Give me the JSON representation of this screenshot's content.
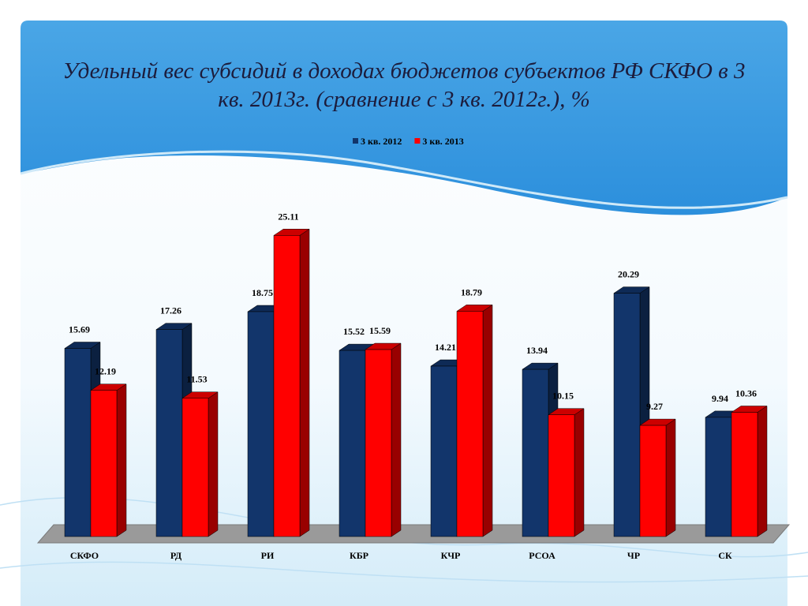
{
  "chart_data": {
    "type": "bar3d",
    "title": "Удельный вес субсидий в доходах бюджетов субъектов РФ СКФО в 3 кв. 2013г. (сравнение с 3 кв. 2012г.), %",
    "categories": [
      "СКФО",
      "РД",
      "РИ",
      "КБР",
      "КЧР",
      "РСОА",
      "ЧР",
      "СК"
    ],
    "series": [
      {
        "name": "3 кв. 2012",
        "color": "#12356b",
        "values": [
          15.69,
          17.26,
          18.75,
          15.52,
          14.21,
          13.94,
          20.29,
          9.94
        ]
      },
      {
        "name": "3 кв. 2013",
        "color": "#ff0000",
        "values": [
          12.19,
          11.53,
          25.11,
          15.59,
          18.79,
          10.15,
          9.27,
          10.36
        ]
      }
    ],
    "legend": "top"
  }
}
